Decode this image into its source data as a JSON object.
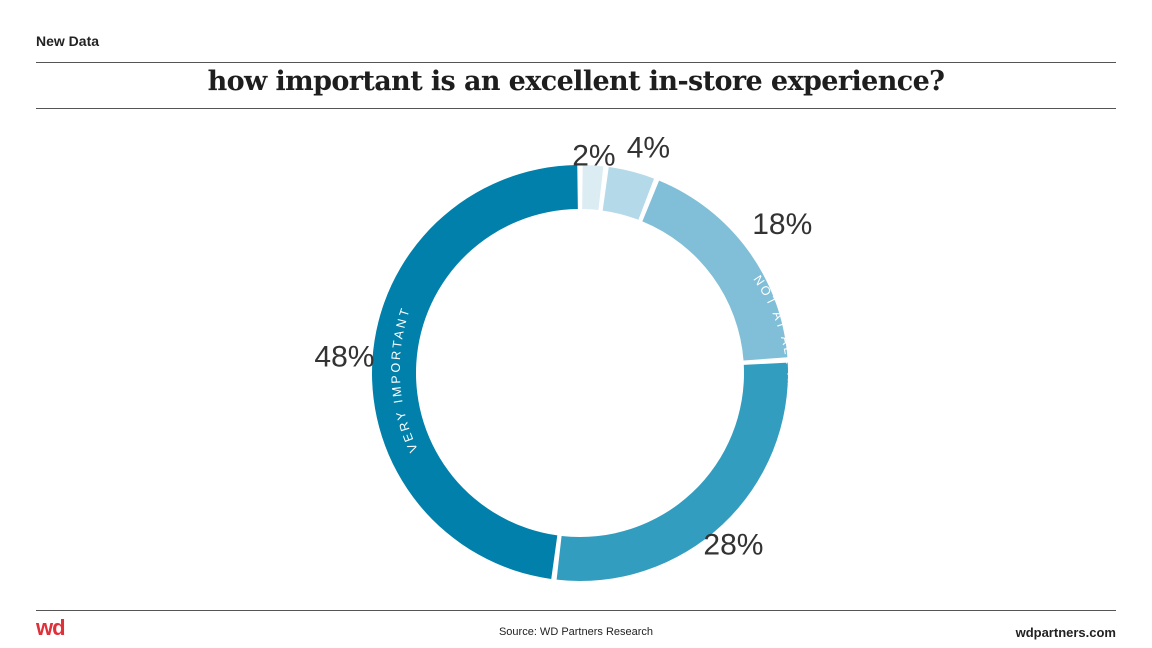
{
  "header": {
    "kicker": "New Data"
  },
  "chart_data": {
    "type": "pie",
    "title": "how important is an excellent in-store experience?",
    "categories": [
      "",
      "",
      "",
      "",
      ""
    ],
    "values": [
      2,
      4,
      18,
      28,
      48
    ],
    "value_labels": [
      "2%",
      "4%",
      "18%",
      "28%",
      "48%"
    ],
    "colors": [
      "#dcecf3",
      "#b4d9e8",
      "#80bfd7",
      "#339dc0",
      "#0080aa"
    ],
    "arc_labels": {
      "not_important": "NOT AT ALL IMPORTANT",
      "very_important": "VERY IMPORTANT"
    },
    "legend": "none"
  },
  "footer": {
    "logo": "wd",
    "source": "Source: WD Partners Research",
    "site": "wdpartners.com"
  }
}
